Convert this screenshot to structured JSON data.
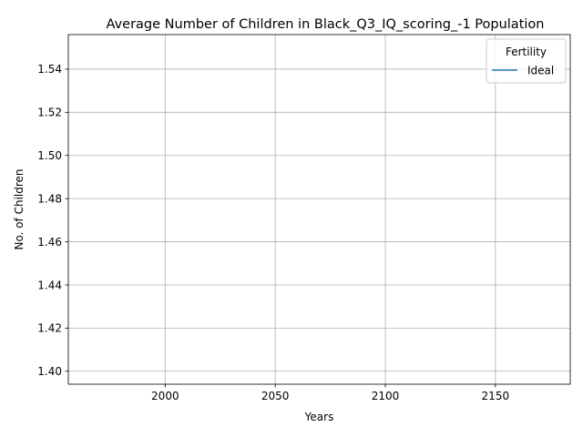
{
  "chart_data": {
    "type": "line",
    "title": "Average Number of Children in Black_Q3_IQ_scoring_-1 Population",
    "xlabel": "Years",
    "ylabel": "No. of Children",
    "xlim": [
      1956,
      2184
    ],
    "ylim": [
      1.394,
      1.556
    ],
    "xticks": [
      2000,
      2050,
      2100,
      2150
    ],
    "yticks": [
      1.4,
      1.42,
      1.44,
      1.46,
      1.48,
      1.5,
      1.52,
      1.54
    ],
    "ytick_labels": [
      "1.40",
      "1.42",
      "1.44",
      "1.46",
      "1.48",
      "1.50",
      "1.52",
      "1.54"
    ],
    "grid": true,
    "legend": {
      "title": "Fertility",
      "placement": "top-right"
    },
    "series": [
      {
        "name": "Ideal",
        "color": "#1f77b4",
        "x": [],
        "y": []
      }
    ]
  }
}
